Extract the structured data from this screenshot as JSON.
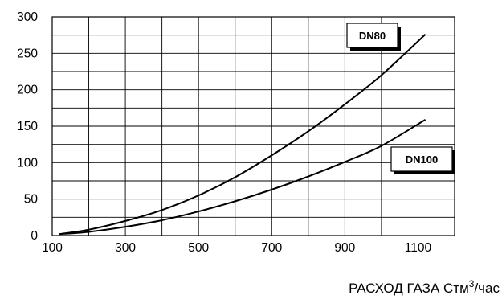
{
  "chart_data": {
    "type": "line",
    "title": "",
    "xlabel_parts": [
      "РАСХОД ГАЗА Стм",
      "3",
      "/час"
    ],
    "ylabel": "",
    "xlim": [
      100,
      1200
    ],
    "ylim": [
      0,
      300
    ],
    "x_ticks": [
      100,
      300,
      500,
      700,
      900,
      1100
    ],
    "y_ticks": [
      0,
      50,
      100,
      150,
      200,
      250,
      300
    ],
    "grid": true,
    "grid_x_step": 100,
    "grid_y_step": 25,
    "legend_placement": "inline labels on curves",
    "series": [
      {
        "name": "DN80",
        "color": "#000000",
        "x": [
          120,
          200,
          300,
          400,
          500,
          600,
          700,
          800,
          900,
          1000,
          1120
        ],
        "y": [
          2,
          8,
          20,
          35,
          55,
          80,
          110,
          143,
          180,
          220,
          276
        ]
      },
      {
        "name": "DN100",
        "color": "#000000",
        "x": [
          120,
          200,
          300,
          400,
          500,
          600,
          700,
          800,
          900,
          1000,
          1120
        ],
        "y": [
          2,
          5,
          12,
          21,
          33,
          47,
          63,
          81,
          101,
          123,
          159
        ]
      }
    ]
  }
}
